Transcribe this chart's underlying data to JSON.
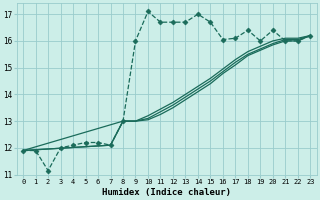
{
  "xlabel": "Humidex (Indice chaleur)",
  "bg_color": "#cceee8",
  "grid_color": "#99cccc",
  "line_color": "#1a6b5a",
  "xlim": [
    -0.5,
    23.5
  ],
  "ylim": [
    11,
    17.4
  ],
  "yticks": [
    11,
    12,
    13,
    14,
    15,
    16,
    17
  ],
  "xticks": [
    0,
    1,
    2,
    3,
    4,
    5,
    6,
    7,
    8,
    9,
    10,
    11,
    12,
    13,
    14,
    15,
    16,
    17,
    18,
    19,
    20,
    21,
    22,
    23
  ],
  "s1_x": [
    0,
    1,
    2,
    3,
    4,
    5,
    6,
    7,
    8,
    9,
    10,
    11,
    12,
    13,
    14,
    15,
    16,
    17,
    18,
    19,
    20,
    21,
    22,
    23
  ],
  "s1_y": [
    11.9,
    11.9,
    11.15,
    12.0,
    12.1,
    12.2,
    12.2,
    12.1,
    13.0,
    16.0,
    17.1,
    16.7,
    16.7,
    16.7,
    17.0,
    16.7,
    16.05,
    16.1,
    16.4,
    16.0,
    16.4,
    16.0,
    16.0,
    16.2
  ],
  "s2_x": [
    0,
    7,
    8,
    9,
    10,
    11,
    12,
    13,
    14,
    15,
    16,
    17,
    18,
    19,
    20,
    21,
    22,
    23
  ],
  "s2_y": [
    11.9,
    12.1,
    13.0,
    13.0,
    13.2,
    13.45,
    13.7,
    14.0,
    14.3,
    14.6,
    14.95,
    15.3,
    15.6,
    15.8,
    16.0,
    16.1,
    16.1,
    16.2
  ],
  "s3_x": [
    0,
    7,
    8,
    9,
    10,
    11,
    12,
    13,
    14,
    15,
    16,
    17,
    18,
    19,
    20,
    21,
    22,
    23
  ],
  "s3_y": [
    11.9,
    12.1,
    13.0,
    13.0,
    13.1,
    13.35,
    13.6,
    13.9,
    14.2,
    14.5,
    14.85,
    15.2,
    15.5,
    15.7,
    15.9,
    16.05,
    16.05,
    16.2
  ],
  "s4_x": [
    0,
    8,
    9,
    10,
    11,
    12,
    13,
    14,
    15,
    16,
    17,
    18,
    19,
    20,
    21,
    22,
    23
  ],
  "s4_y": [
    11.9,
    13.0,
    13.0,
    13.05,
    13.25,
    13.5,
    13.8,
    14.1,
    14.4,
    14.78,
    15.1,
    15.45,
    15.65,
    15.85,
    16.0,
    16.0,
    16.2
  ]
}
